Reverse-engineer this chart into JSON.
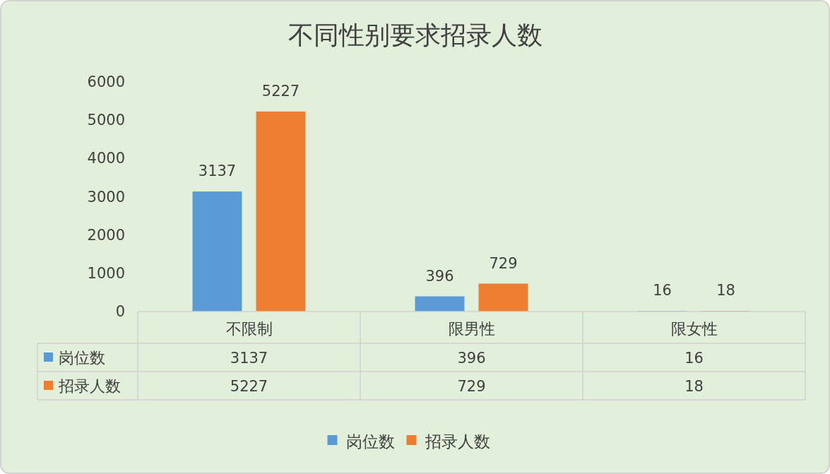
{
  "chart_data": {
    "type": "bar",
    "title": "不同性别要求招录人数",
    "categories": [
      "不限制",
      "限男性",
      "限女性"
    ],
    "series": [
      {
        "name": "岗位数",
        "color": "#5b9bd5",
        "values": [
          3137,
          396,
          16
        ]
      },
      {
        "name": "招录人数",
        "color": "#ed7d31",
        "values": [
          5227,
          729,
          18
        ]
      }
    ],
    "ylim": [
      0,
      6000
    ],
    "yticks": [
      0,
      1000,
      2000,
      3000,
      4000,
      5000,
      6000
    ],
    "grid": false,
    "data_labels": true,
    "annotations": [
      "3137",
      "396",
      "16",
      "5227",
      "729",
      "18"
    ],
    "legend": "bottom"
  }
}
